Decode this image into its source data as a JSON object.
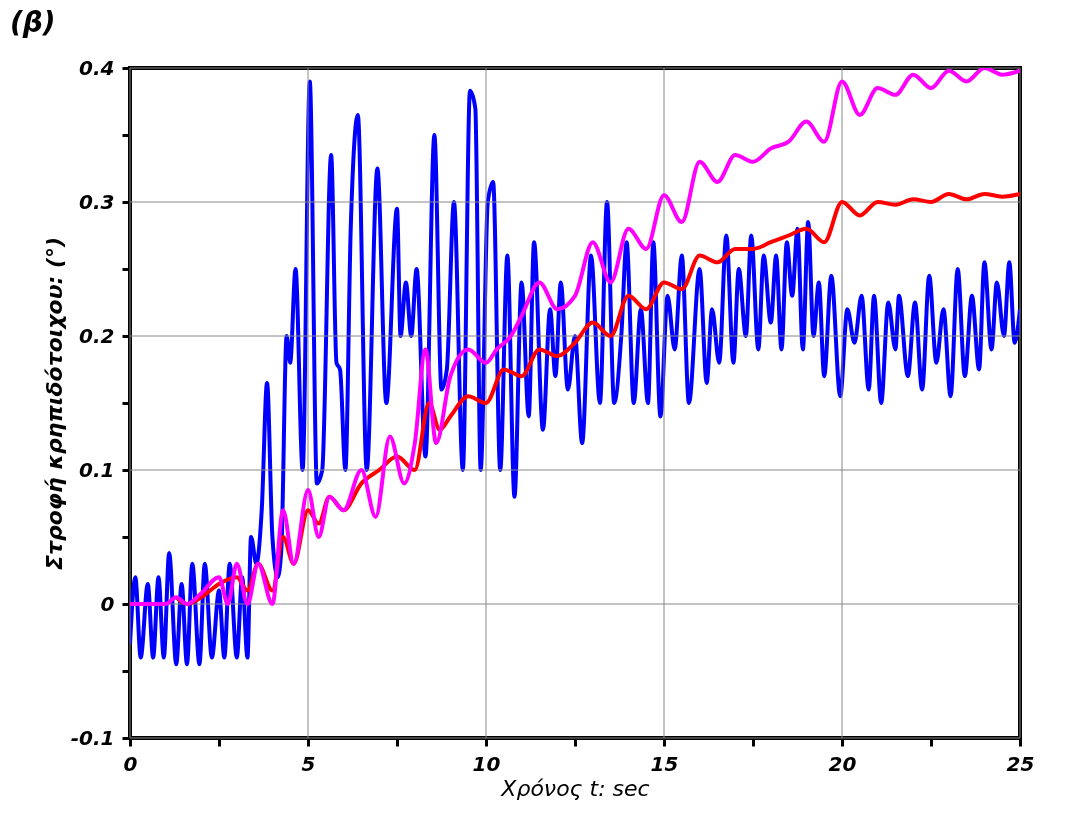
{
  "chart_data": {
    "type": "line",
    "title": "(β)",
    "xlabel": "Χρόνος t: sec",
    "ylabel": "Στροφή κρηπιδότοιχου: (°)",
    "xlim": [
      0,
      25
    ],
    "ylim": [
      -0.1,
      0.4
    ],
    "xticks": [
      0,
      {
        "value": 2.5,
        "label": null
      },
      5,
      {
        "value": 7.5,
        "label": null
      },
      10,
      {
        "value": 12.5,
        "label": null
      },
      15,
      {
        "value": 17.5,
        "label": null
      },
      20,
      {
        "value": 22.5,
        "label": null
      },
      25
    ],
    "yticks": [
      -0.1,
      {
        "value": -0.05,
        "label": null
      },
      0,
      {
        "value": 0.05,
        "label": null
      },
      0.1,
      {
        "value": 0.15,
        "label": null
      },
      0.2,
      {
        "value": 0.25,
        "label": null
      },
      0.3,
      {
        "value": 0.35,
        "label": null
      },
      0.4
    ],
    "grid": true,
    "line_style": "solid",
    "marker": "none",
    "series": [
      {
        "color": "#0000ff",
        "x": [
          0,
          0.15,
          0.3,
          0.5,
          0.65,
          0.8,
          0.95,
          1.1,
          1.3,
          1.45,
          1.6,
          1.75,
          1.95,
          2.1,
          2.3,
          2.5,
          2.65,
          2.8,
          3.0,
          3.15,
          3.3,
          3.4,
          3.55,
          3.7,
          3.85,
          4.0,
          4.15,
          4.25,
          4.4,
          4.5,
          4.65,
          4.85,
          5.05,
          5.25,
          5.4,
          5.65,
          5.8,
          5.9,
          6.05,
          6.2,
          6.4,
          6.65,
          6.95,
          7.2,
          7.5,
          7.6,
          7.75,
          7.9,
          8.05,
          8.3,
          8.55,
          8.75,
          8.9,
          9.1,
          9.35,
          9.55,
          9.7,
          9.85,
          10.05,
          10.2,
          10.4,
          10.6,
          10.8,
          11.0,
          11.2,
          11.35,
          11.6,
          11.8,
          11.95,
          12.1,
          12.3,
          12.5,
          12.7,
          12.95,
          13.2,
          13.4,
          13.6,
          13.8,
          13.95,
          14.15,
          14.35,
          14.55,
          14.7,
          14.9,
          15.1,
          15.3,
          15.5,
          15.7,
          16.0,
          16.2,
          16.35,
          16.55,
          16.75,
          16.95,
          17.1,
          17.3,
          17.45,
          17.65,
          17.8,
          18.0,
          18.15,
          18.3,
          18.45,
          18.6,
          18.75,
          18.9,
          19.05,
          19.2,
          19.35,
          19.5,
          19.7,
          19.95,
          20.15,
          20.35,
          20.55,
          20.75,
          20.9,
          21.1,
          21.3,
          21.5,
          21.6,
          21.85,
          22.05,
          22.25,
          22.45,
          22.65,
          22.85,
          23.05,
          23.25,
          23.45,
          23.65,
          23.85,
          24.0,
          24.2,
          24.35,
          24.55,
          24.7,
          24.85,
          25
        ],
        "values": [
          -0.03,
          0.02,
          -0.04,
          0.015,
          -0.04,
          0.02,
          -0.04,
          0.038,
          -0.045,
          0.015,
          -0.045,
          0.03,
          -0.045,
          0.03,
          -0.04,
          0.01,
          -0.04,
          0.03,
          -0.04,
          0.02,
          -0.04,
          0.05,
          0.03,
          0.07,
          0.165,
          0.05,
          0.02,
          0.04,
          0.2,
          0.18,
          0.25,
          0.1,
          0.39,
          0.09,
          0.1,
          0.335,
          0.18,
          0.175,
          0.1,
          0.28,
          0.365,
          0.1,
          0.325,
          0.15,
          0.295,
          0.2,
          0.24,
          0.2,
          0.25,
          0.11,
          0.35,
          0.16,
          0.175,
          0.3,
          0.1,
          0.383,
          0.37,
          0.1,
          0.3,
          0.315,
          0.1,
          0.26,
          0.08,
          0.24,
          0.14,
          0.27,
          0.13,
          0.22,
          0.17,
          0.24,
          0.16,
          0.2,
          0.12,
          0.26,
          0.15,
          0.3,
          0.15,
          0.2,
          0.27,
          0.15,
          0.22,
          0.15,
          0.27,
          0.14,
          0.23,
          0.19,
          0.26,
          0.15,
          0.25,
          0.165,
          0.22,
          0.18,
          0.275,
          0.18,
          0.25,
          0.2,
          0.275,
          0.19,
          0.26,
          0.21,
          0.26,
          0.19,
          0.27,
          0.23,
          0.28,
          0.19,
          0.285,
          0.2,
          0.24,
          0.17,
          0.245,
          0.155,
          0.22,
          0.195,
          0.23,
          0.16,
          0.23,
          0.15,
          0.225,
          0.19,
          0.23,
          0.17,
          0.225,
          0.16,
          0.245,
          0.18,
          0.22,
          0.155,
          0.25,
          0.17,
          0.23,
          0.175,
          0.255,
          0.19,
          0.24,
          0.2,
          0.255,
          0.195,
          0.22
        ]
      },
      {
        "color": "#ff0000",
        "x": [
          1.3,
          1.6,
          2,
          2.5,
          3,
          3.3,
          3.6,
          4,
          4.3,
          4.6,
          5,
          5.3,
          5.6,
          6,
          6.5,
          7,
          7.5,
          8,
          8.4,
          8.7,
          9,
          9.5,
          10,
          10.5,
          11,
          11.5,
          12,
          12.5,
          13,
          13.5,
          14,
          14.5,
          15,
          15.5,
          16,
          16.5,
          17,
          17.5,
          18,
          18.5,
          19,
          19.5,
          20,
          20.5,
          21,
          21.5,
          22,
          22.5,
          23,
          23.5,
          24,
          24.5,
          25
        ],
        "values": [
          0.005,
          0,
          0.005,
          0.015,
          0.02,
          0.01,
          0.03,
          0.01,
          0.05,
          0.03,
          0.07,
          0.06,
          0.08,
          0.07,
          0.09,
          0.1,
          0.11,
          0.1,
          0.15,
          0.13,
          0.14,
          0.155,
          0.15,
          0.175,
          0.17,
          0.19,
          0.185,
          0.195,
          0.21,
          0.2,
          0.23,
          0.22,
          0.24,
          0.235,
          0.26,
          0.255,
          0.265,
          0.265,
          0.27,
          0.275,
          0.28,
          0.27,
          0.3,
          0.29,
          0.3,
          0.298,
          0.302,
          0.3,
          0.306,
          0.302,
          0.306,
          0.304,
          0.306
        ]
      },
      {
        "color": "#ff00ff",
        "x": [
          0,
          1,
          1.3,
          1.6,
          2,
          2.5,
          2.75,
          3,
          3.3,
          3.6,
          4,
          4.3,
          4.6,
          5,
          5.3,
          5.6,
          6,
          6.5,
          6.9,
          7.3,
          7.7,
          8,
          8.3,
          8.6,
          9,
          9.5,
          10,
          10.3,
          10.7,
          11,
          11.5,
          12,
          12.5,
          13,
          13.5,
          14,
          14.5,
          15,
          15.5,
          16,
          16.5,
          17,
          17.5,
          18,
          18.5,
          19,
          19.5,
          20,
          20.5,
          21,
          21.5,
          22,
          22.5,
          23,
          23.5,
          24,
          24.5,
          25
        ],
        "values": [
          0,
          0,
          0.005,
          0,
          0.008,
          0.02,
          0.0,
          0.03,
          0.0,
          0.03,
          0.0,
          0.07,
          0.03,
          0.085,
          0.05,
          0.08,
          0.07,
          0.1,
          0.065,
          0.125,
          0.09,
          0.12,
          0.19,
          0.12,
          0.17,
          0.19,
          0.18,
          0.19,
          0.2,
          0.215,
          0.24,
          0.22,
          0.23,
          0.27,
          0.24,
          0.28,
          0.265,
          0.305,
          0.285,
          0.33,
          0.315,
          0.335,
          0.33,
          0.34,
          0.345,
          0.36,
          0.345,
          0.39,
          0.365,
          0.385,
          0.38,
          0.395,
          0.385,
          0.398,
          0.39,
          0.4,
          0.395,
          0.398
        ]
      }
    ]
  }
}
